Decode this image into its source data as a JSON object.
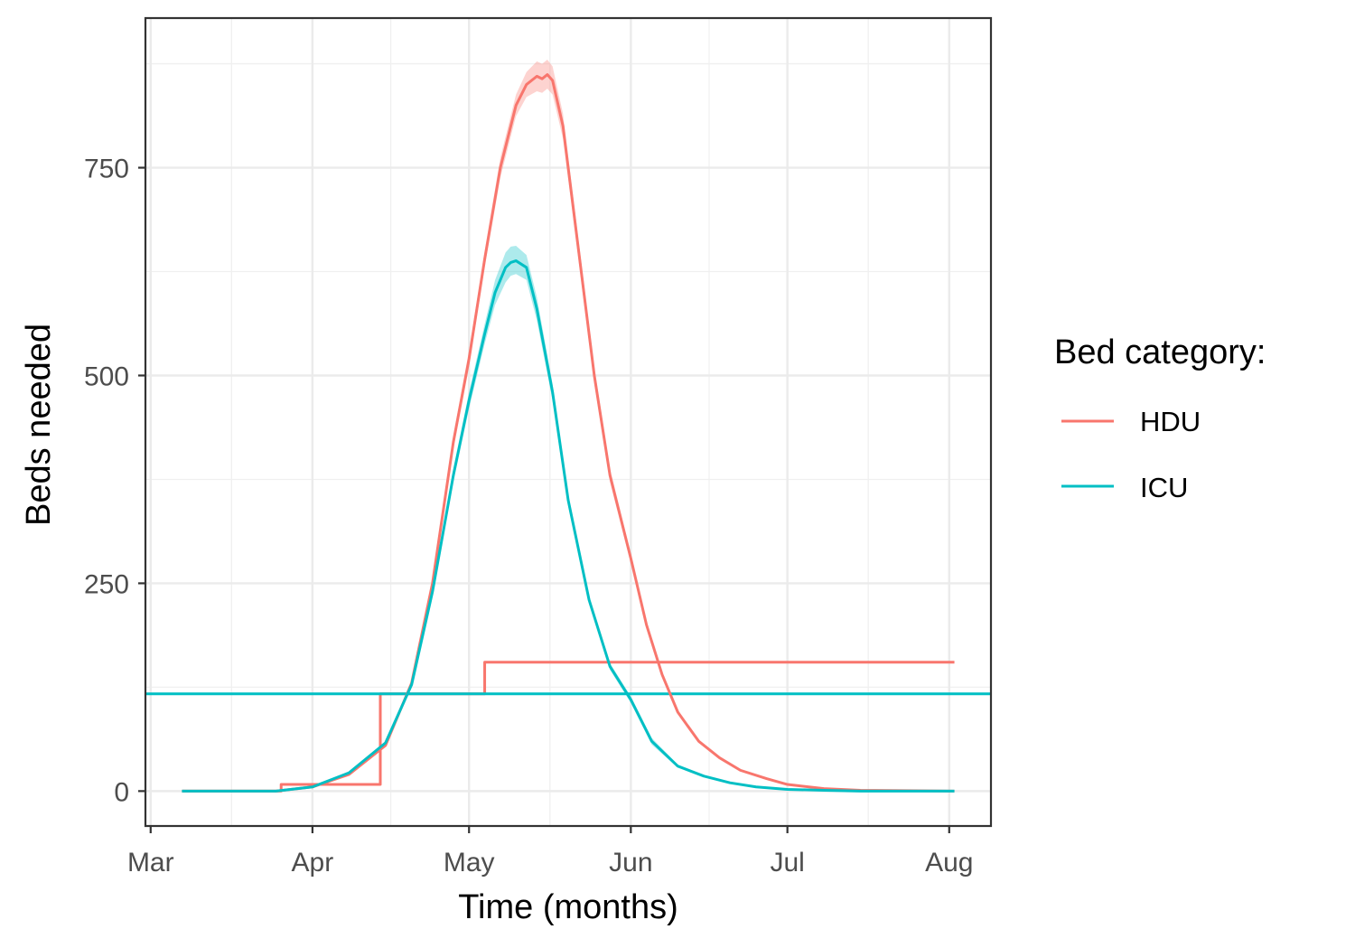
{
  "chart_data": {
    "type": "line",
    "xlabel": "Time (months)",
    "ylabel": "Beds needed",
    "x_ticks": [
      "Mar",
      "Apr",
      "May",
      "Jun",
      "Jul",
      "Aug"
    ],
    "x_tick_dates": [
      "2020-03-01",
      "2020-04-01",
      "2020-05-01",
      "2020-06-01",
      "2020-07-01",
      "2020-08-01"
    ],
    "xlim": [
      "2020-02-29",
      "2020-08-09"
    ],
    "y_ticks": [
      0,
      250,
      500,
      750
    ],
    "ylim": [
      -42,
      930
    ],
    "grid": true,
    "legend": {
      "title": "Bed category:",
      "position": "right"
    },
    "colors": {
      "HDU": "#F8766D",
      "ICU": "#00BFC4"
    },
    "series": [
      {
        "name": "HDU",
        "kind": "demand",
        "x": [
          "2020-03-07",
          "2020-03-25",
          "2020-04-01",
          "2020-04-08",
          "2020-04-15",
          "2020-04-20",
          "2020-04-24",
          "2020-04-28",
          "2020-05-01",
          "2020-05-04",
          "2020-05-07",
          "2020-05-10",
          "2020-05-12",
          "2020-05-14",
          "2020-05-15",
          "2020-05-16",
          "2020-05-17",
          "2020-05-19",
          "2020-05-22",
          "2020-05-25",
          "2020-05-28",
          "2020-06-01",
          "2020-06-04",
          "2020-06-07",
          "2020-06-10",
          "2020-06-14",
          "2020-06-18",
          "2020-06-22",
          "2020-06-27",
          "2020-07-01",
          "2020-07-08",
          "2020-07-15",
          "2020-08-02"
        ],
        "y": [
          0,
          0,
          5,
          20,
          55,
          130,
          250,
          420,
          520,
          640,
          750,
          825,
          850,
          860,
          857,
          862,
          855,
          800,
          650,
          500,
          380,
          280,
          200,
          140,
          95,
          60,
          40,
          25,
          15,
          8,
          3,
          1,
          0
        ],
        "lower": [
          0,
          0,
          5,
          19,
          53,
          127,
          245,
          412,
          510,
          630,
          738,
          812,
          835,
          842,
          840,
          845,
          838,
          785,
          638,
          490,
          372,
          274,
          196,
          137,
          93,
          58,
          39,
          24,
          14,
          7,
          3,
          1,
          0
        ],
        "upper": [
          0,
          0,
          5,
          21,
          57,
          133,
          255,
          428,
          530,
          650,
          762,
          838,
          865,
          878,
          875,
          880,
          872,
          815,
          662,
          510,
          388,
          286,
          204,
          143,
          97,
          62,
          41,
          26,
          16,
          9,
          3,
          1,
          0
        ]
      },
      {
        "name": "ICU",
        "kind": "demand",
        "x": [
          "2020-03-07",
          "2020-03-25",
          "2020-04-01",
          "2020-04-08",
          "2020-04-15",
          "2020-04-20",
          "2020-04-24",
          "2020-04-28",
          "2020-05-01",
          "2020-05-04",
          "2020-05-06",
          "2020-05-08",
          "2020-05-09",
          "2020-05-10",
          "2020-05-12",
          "2020-05-14",
          "2020-05-17",
          "2020-05-20",
          "2020-05-24",
          "2020-05-28",
          "2020-06-01",
          "2020-06-05",
          "2020-06-10",
          "2020-06-15",
          "2020-06-20",
          "2020-06-25",
          "2020-07-01",
          "2020-07-08",
          "2020-07-15",
          "2020-08-02"
        ],
        "y": [
          0,
          0,
          5,
          22,
          58,
          128,
          240,
          380,
          470,
          550,
          600,
          630,
          636,
          638,
          630,
          580,
          480,
          350,
          230,
          150,
          110,
          60,
          30,
          18,
          10,
          5,
          2,
          1,
          0,
          0
        ],
        "lower": [
          0,
          0,
          5,
          21,
          56,
          125,
          235,
          372,
          460,
          538,
          585,
          612,
          620,
          622,
          615,
          566,
          470,
          343,
          225,
          146,
          106,
          56,
          28,
          17,
          9,
          5,
          2,
          1,
          0,
          0
        ],
        "upper": [
          0,
          0,
          5,
          23,
          60,
          131,
          245,
          388,
          480,
          562,
          615,
          648,
          655,
          656,
          645,
          594,
          490,
          357,
          235,
          154,
          114,
          64,
          32,
          19,
          11,
          5,
          2,
          1,
          0,
          0
        ]
      },
      {
        "name": "HDU",
        "kind": "capacity",
        "x": [
          "2020-03-07",
          "2020-03-26",
          "2020-03-26",
          "2020-04-14",
          "2020-04-14",
          "2020-05-04",
          "2020-05-04",
          "2020-08-02"
        ],
        "y": [
          0,
          0,
          8,
          8,
          117,
          117,
          155,
          155
        ]
      },
      {
        "name": "ICU",
        "kind": "capacity",
        "x": [
          "2020-02-29",
          "2020-08-09"
        ],
        "y": [
          117,
          117
        ]
      }
    ]
  }
}
